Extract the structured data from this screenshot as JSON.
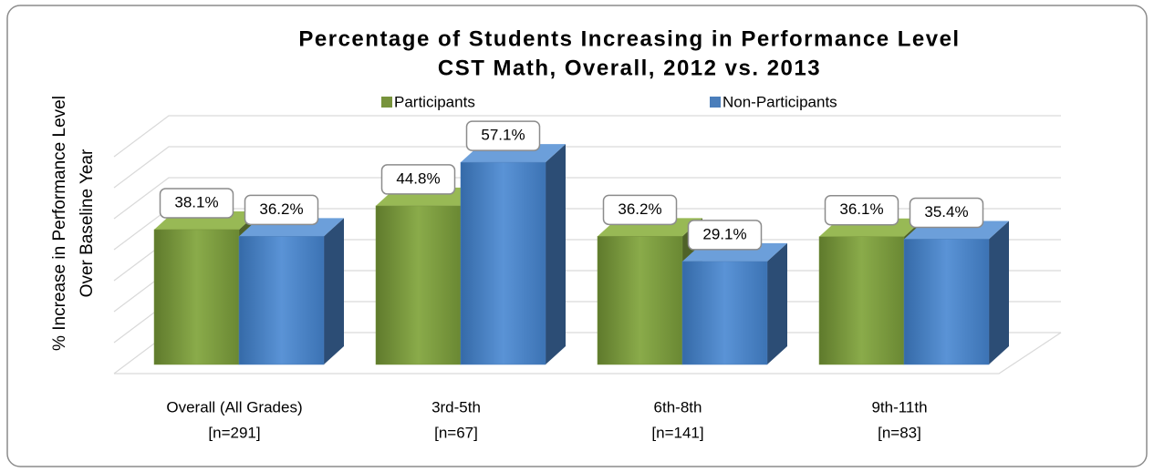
{
  "chart_data": {
    "type": "bar3d",
    "title": "Percentage of Students Increasing in Performance Level",
    "subtitle": "CST Math, Overall, 2012 vs. 2013",
    "y_label": [
      "% Increase in Performance Level",
      "Over Baseline Year"
    ],
    "categories": [
      "Overall (All Grades)",
      "3rd-5th",
      "6th-8th",
      "9th-11th"
    ],
    "category_notes": [
      "[n=291]",
      "[n=67]",
      "[n=141]",
      "[n=83]"
    ],
    "series": [
      {
        "name": "Participants",
        "color": "#77933c",
        "values": [
          38.1,
          44.8,
          36.2,
          36.1
        ],
        "value_labels": [
          "38.1%",
          "44.8%",
          "36.2%",
          "36.1%"
        ]
      },
      {
        "name": "Non-Participants",
        "color": "#4a7ebb",
        "values": [
          36.2,
          57.1,
          29.1,
          35.4
        ],
        "value_labels": [
          "36.2%",
          "57.1%",
          "29.1%",
          "35.4%"
        ]
      }
    ],
    "ylim": [
      0,
      70
    ],
    "yticks": [
      0,
      10,
      20,
      30,
      40,
      50,
      60,
      70
    ],
    "grid": true,
    "legend": "top"
  }
}
